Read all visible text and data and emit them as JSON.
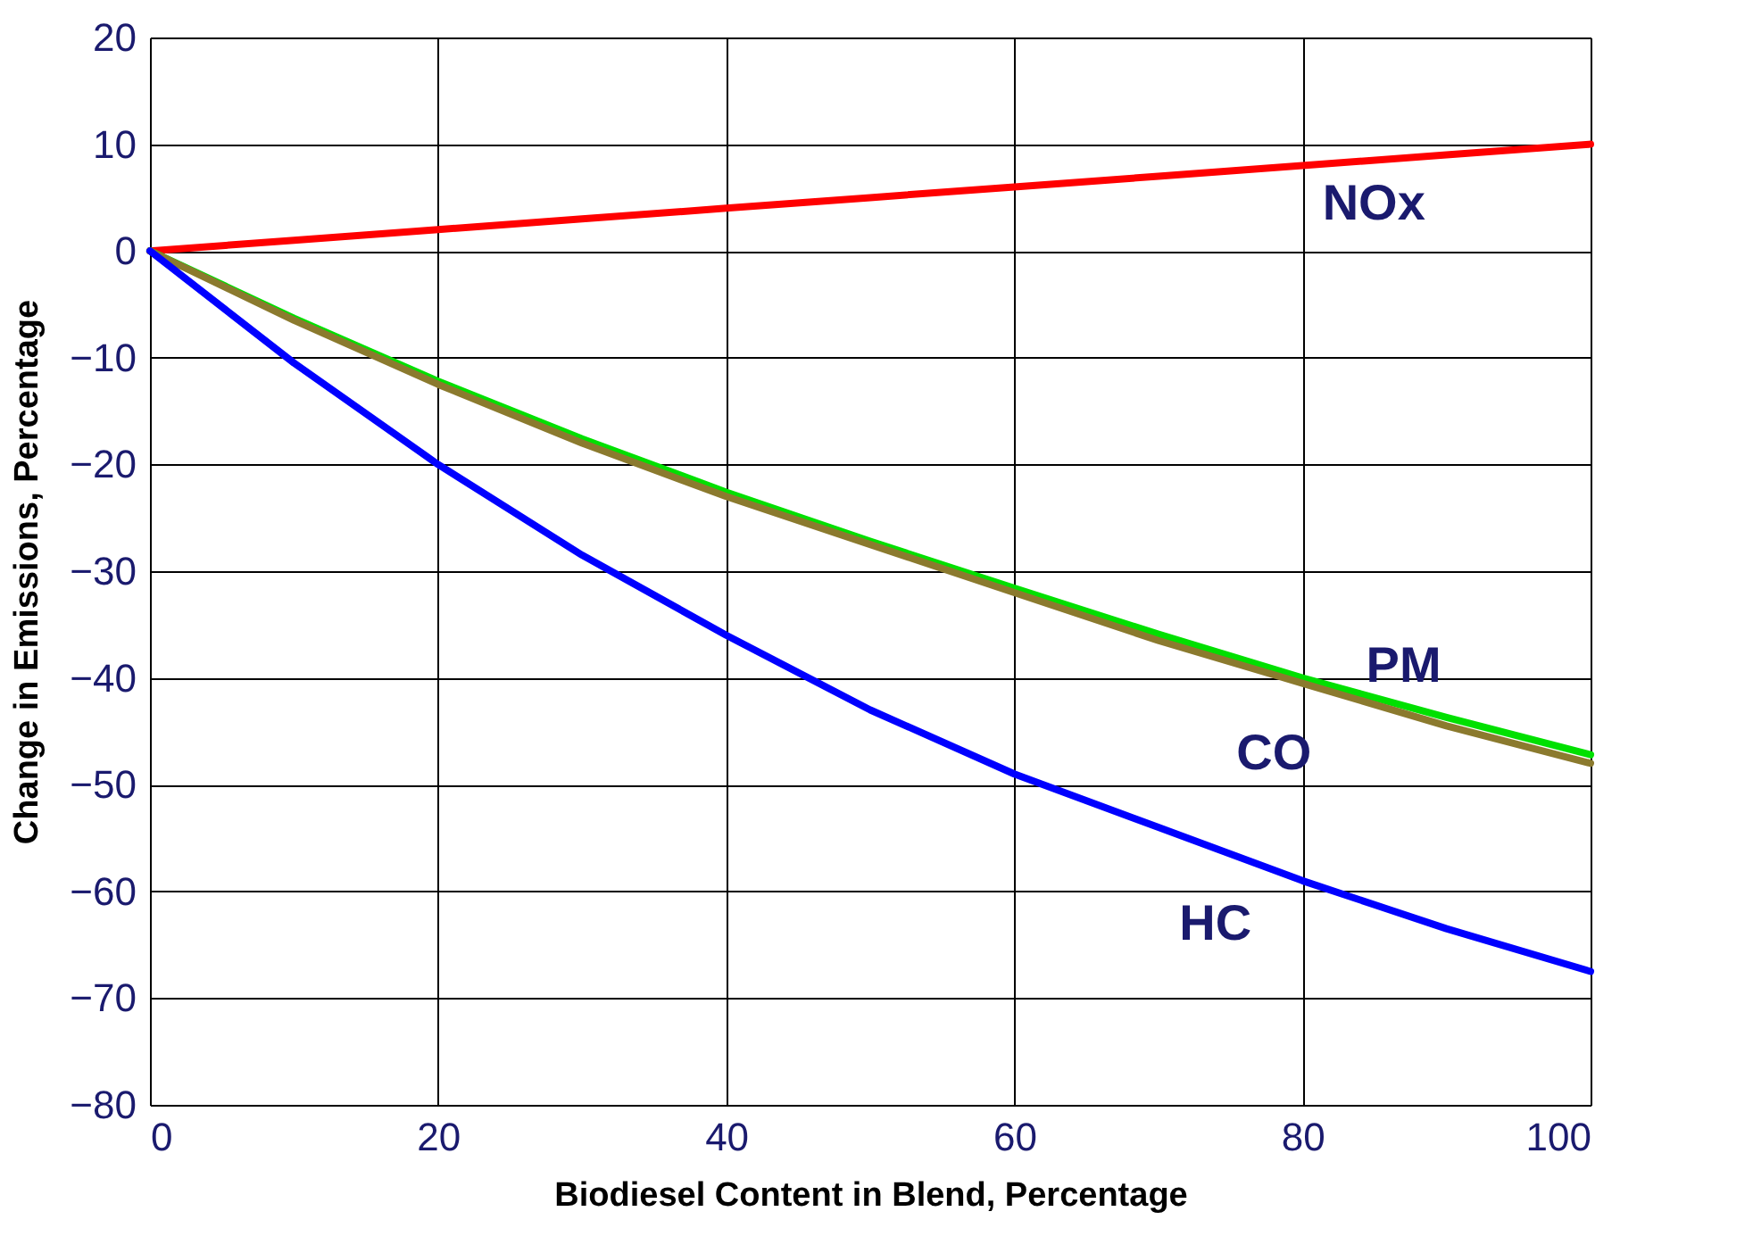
{
  "chart_data": {
    "type": "line",
    "xlabel": "Biodiesel Content in Blend, Percentage",
    "ylabel": "Change in Emissions, Percentage",
    "x": [
      0,
      10,
      20,
      30,
      40,
      50,
      60,
      70,
      80,
      90,
      100
    ],
    "series": [
      {
        "name": "NOx",
        "color": "#ff0000",
        "values": [
          0,
          1,
          2,
          3,
          4,
          5,
          6,
          7,
          8,
          9,
          10
        ]
      },
      {
        "name": "PM",
        "color": "#00e000",
        "values": [
          0,
          -6.3,
          -12.2,
          -17.6,
          -22.6,
          -27.2,
          -31.6,
          -35.9,
          -40,
          -43.7,
          -47.2
        ]
      },
      {
        "name": "CO",
        "color": "#8b7a2e",
        "values": [
          0,
          -6.5,
          -12.5,
          -18,
          -23,
          -27.5,
          -32,
          -36.5,
          -40.5,
          -44.5,
          -48
        ]
      },
      {
        "name": "HC",
        "color": "#0000ff",
        "values": [
          0,
          -10.5,
          -20,
          -28.5,
          -36,
          -43,
          -49,
          -54,
          -59,
          -63.5,
          -67.5
        ]
      }
    ],
    "xlim": [
      0,
      100
    ],
    "xticks": [
      0,
      20,
      40,
      60,
      80,
      100
    ],
    "ylim": [
      -80,
      20
    ],
    "yticks": [
      20,
      10,
      0,
      -10,
      -20,
      -30,
      -40,
      -50,
      -60,
      -70,
      -80
    ],
    "grid": true,
    "legend": false,
    "marker": "none",
    "line_style": "solid"
  }
}
